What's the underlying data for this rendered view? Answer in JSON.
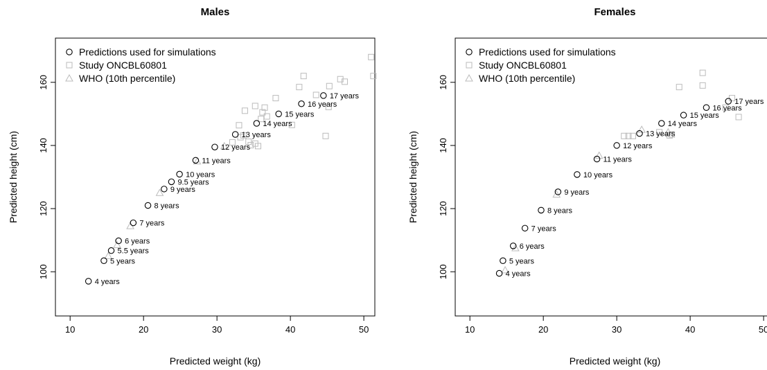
{
  "chart_data": [
    {
      "type": "scatter",
      "title": "Males",
      "xlabel": "Predicted weight (kg)",
      "ylabel": "Predicted height (cm)",
      "xlim": [
        8,
        51.5
      ],
      "ylim": [
        86,
        174
      ],
      "xticks": [
        10,
        20,
        30,
        40,
        50
      ],
      "yticks": [
        100,
        120,
        140,
        160
      ],
      "legend_position": "top-left",
      "legend": [
        {
          "name": "Predictions used for simulations",
          "marker": "circle",
          "color": "#000000"
        },
        {
          "name": "Study ONCBL60801",
          "marker": "square",
          "color": "#bbbbbb"
        },
        {
          "name": "WHO (10th percentile)",
          "marker": "triangle",
          "color": "#bbbbbb"
        }
      ],
      "predictions": [
        {
          "x": 12.5,
          "y": 97,
          "label": "4 years"
        },
        {
          "x": 14.6,
          "y": 103.5,
          "label": "5 years"
        },
        {
          "x": 15.6,
          "y": 106.7,
          "label": "5.5 years"
        },
        {
          "x": 16.6,
          "y": 109.8,
          "label": "6 years"
        },
        {
          "x": 18.6,
          "y": 115.5,
          "label": "7 years"
        },
        {
          "x": 20.6,
          "y": 121,
          "label": "8 years"
        },
        {
          "x": 22.8,
          "y": 126.2,
          "label": "9 years"
        },
        {
          "x": 23.8,
          "y": 128.5,
          "label": "9.5 years"
        },
        {
          "x": 24.9,
          "y": 130.9,
          "label": "10 years"
        },
        {
          "x": 27.1,
          "y": 135.3,
          "label": "11 years"
        },
        {
          "x": 29.7,
          "y": 139.5,
          "label": "12 years"
        },
        {
          "x": 32.5,
          "y": 143.5,
          "label": "13 years"
        },
        {
          "x": 35.4,
          "y": 147,
          "label": "14 years"
        },
        {
          "x": 38.4,
          "y": 150,
          "label": "15 years"
        },
        {
          "x": 41.5,
          "y": 153.2,
          "label": "16 years"
        },
        {
          "x": 44.5,
          "y": 155.8,
          "label": "17 years"
        }
      ],
      "study": [
        {
          "x": 51,
          "y": 168
        },
        {
          "x": 51.3,
          "y": 162
        },
        {
          "x": 41.8,
          "y": 162
        },
        {
          "x": 41.2,
          "y": 158.5
        },
        {
          "x": 46.8,
          "y": 161
        },
        {
          "x": 47.4,
          "y": 160.2
        },
        {
          "x": 45.3,
          "y": 158.8
        },
        {
          "x": 43.5,
          "y": 156
        },
        {
          "x": 38,
          "y": 155
        },
        {
          "x": 35.2,
          "y": 152.5
        },
        {
          "x": 36.5,
          "y": 152
        },
        {
          "x": 33.8,
          "y": 151
        },
        {
          "x": 36.2,
          "y": 150.5
        },
        {
          "x": 36.8,
          "y": 149.2
        },
        {
          "x": 36,
          "y": 148.4
        },
        {
          "x": 33,
          "y": 146.4
        },
        {
          "x": 40.2,
          "y": 146.5
        },
        {
          "x": 33.6,
          "y": 143.2
        },
        {
          "x": 33.2,
          "y": 142.6
        },
        {
          "x": 34.3,
          "y": 141.2
        },
        {
          "x": 35.2,
          "y": 140.6
        },
        {
          "x": 34.6,
          "y": 140.1
        },
        {
          "x": 35.6,
          "y": 139.8
        },
        {
          "x": 45.2,
          "y": 152.2
        },
        {
          "x": 44.8,
          "y": 143
        },
        {
          "x": 32.1,
          "y": 141
        }
      ],
      "who": [
        {
          "x": 15.2,
          "y": 105
        },
        {
          "x": 16.4,
          "y": 108.5
        },
        {
          "x": 18.2,
          "y": 114.5
        },
        {
          "x": 22.2,
          "y": 125
        },
        {
          "x": 27.3,
          "y": 135
        },
        {
          "x": 31,
          "y": 139.8
        }
      ]
    },
    {
      "type": "scatter",
      "title": "Females",
      "xlabel": "Predicted weight (kg)",
      "ylabel": "Predicted height (cm)",
      "xlim": [
        8,
        51.5
      ],
      "ylim": [
        86,
        174
      ],
      "xticks": [
        10,
        20,
        30,
        40,
        50
      ],
      "yticks": [
        100,
        120,
        140,
        160
      ],
      "legend_position": "top-left",
      "legend": [
        {
          "name": "Predictions used for simulations",
          "marker": "circle",
          "color": "#000000"
        },
        {
          "name": "Study ONCBL60801",
          "marker": "square",
          "color": "#bbbbbb"
        },
        {
          "name": "WHO (10th percentile)",
          "marker": "triangle",
          "color": "#bbbbbb"
        }
      ],
      "predictions": [
        {
          "x": 14,
          "y": 99.5,
          "label": "4 years"
        },
        {
          "x": 14.5,
          "y": 103.5,
          "label": "5 years"
        },
        {
          "x": 15.9,
          "y": 108.2,
          "label": "6 years"
        },
        {
          "x": 17.5,
          "y": 113.8,
          "label": "7 years"
        },
        {
          "x": 19.7,
          "y": 119.5,
          "label": "8 years"
        },
        {
          "x": 22,
          "y": 125.3,
          "label": "9 years"
        },
        {
          "x": 24.6,
          "y": 130.8,
          "label": "10 years"
        },
        {
          "x": 27.3,
          "y": 135.7,
          "label": "11 years"
        },
        {
          "x": 30,
          "y": 140,
          "label": "12 years"
        },
        {
          "x": 33.1,
          "y": 143.8,
          "label": "13 years"
        },
        {
          "x": 36.1,
          "y": 147,
          "label": "14 years"
        },
        {
          "x": 39.1,
          "y": 149.6,
          "label": "15 years"
        },
        {
          "x": 42.2,
          "y": 152,
          "label": "16 years"
        },
        {
          "x": 45.2,
          "y": 154,
          "label": "17 years"
        }
      ],
      "study": [
        {
          "x": 41.7,
          "y": 163
        },
        {
          "x": 41.7,
          "y": 159
        },
        {
          "x": 38.5,
          "y": 158.5
        },
        {
          "x": 46.6,
          "y": 149
        },
        {
          "x": 31,
          "y": 143
        },
        {
          "x": 31.6,
          "y": 143
        },
        {
          "x": 32.2,
          "y": 143
        },
        {
          "x": 37.2,
          "y": 143.2
        },
        {
          "x": 37.5,
          "y": 143.5
        },
        {
          "x": 35.8,
          "y": 144.2
        },
        {
          "x": 44.8,
          "y": 152
        },
        {
          "x": 45.7,
          "y": 155
        }
      ],
      "who": [
        {
          "x": 14.8,
          "y": 100.5
        },
        {
          "x": 16.2,
          "y": 107.5
        },
        {
          "x": 21.8,
          "y": 124.5
        },
        {
          "x": 27.6,
          "y": 136.8
        },
        {
          "x": 33.4,
          "y": 145
        },
        {
          "x": 37,
          "y": 144.2
        }
      ]
    }
  ]
}
